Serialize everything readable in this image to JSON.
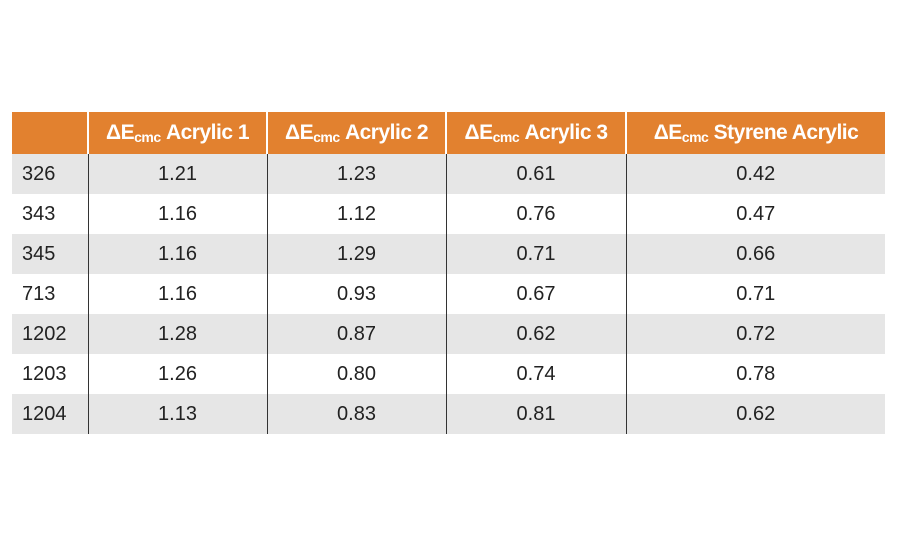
{
  "table": {
    "columns": [
      {
        "symbol": "ΔE",
        "subscript": "cmc",
        "label": "Acrylic 1"
      },
      {
        "symbol": "ΔE",
        "subscript": "cmc",
        "label": "Acrylic 2"
      },
      {
        "symbol": "ΔE",
        "subscript": "cmc",
        "label": "Acrylic 3"
      },
      {
        "symbol": "ΔE",
        "subscript": "cmc",
        "label": "Styrene Acrylic"
      }
    ],
    "rows": [
      [
        "326",
        "1.21",
        "1.23",
        "0.61",
        "0.42"
      ],
      [
        "343",
        "1.16",
        "1.12",
        "0.76",
        "0.47"
      ],
      [
        "345",
        "1.16",
        "1.29",
        "0.71",
        "0.66"
      ],
      [
        "713",
        "1.16",
        "0.93",
        "0.67",
        "0.71"
      ],
      [
        "1202",
        "1.28",
        "0.87",
        "0.62",
        "0.72"
      ],
      [
        "1203",
        "1.26",
        "0.80",
        "0.74",
        "0.78"
      ],
      [
        "1204",
        "1.13",
        "0.83",
        "0.81",
        "0.62"
      ]
    ]
  }
}
